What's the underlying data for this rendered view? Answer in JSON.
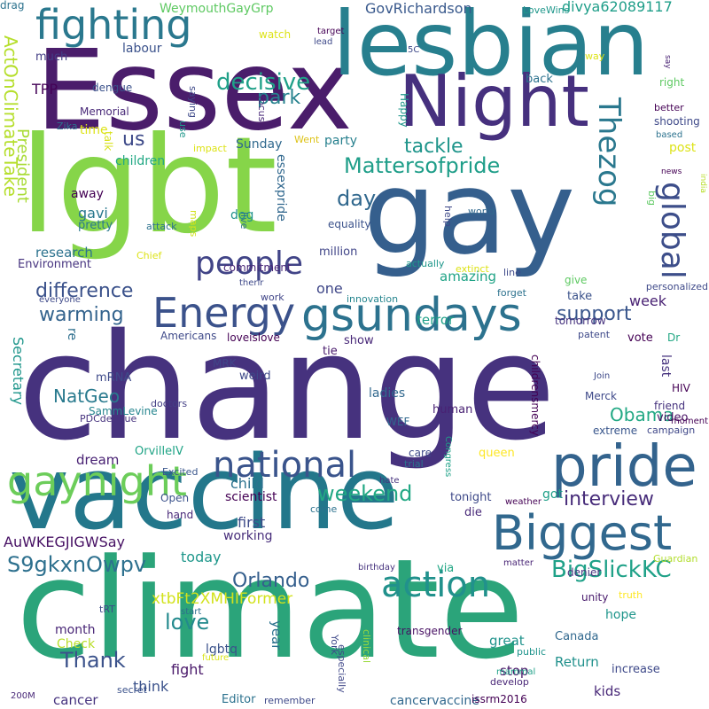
{
  "palette": [
    "#440154",
    "#46327e",
    "#365c8d",
    "#277f8e",
    "#1fa187",
    "#4ac16d",
    "#a0da39",
    "#fde725"
  ],
  "words": [
    {
      "text": "change",
      "color": "#46327e"
    },
    {
      "text": "climate",
      "color": "#2ba47a"
    },
    {
      "text": "vaccine",
      "color": "#23778b"
    },
    {
      "text": "Essex",
      "color": "#4a1d6b"
    },
    {
      "text": "lgbt",
      "color": "#86d549"
    },
    {
      "text": "gay",
      "color": "#355f8d"
    },
    {
      "text": "lesbian",
      "color": "#277f8e"
    },
    {
      "text": "Night",
      "color": "#46307e"
    },
    {
      "text": "pride",
      "color": "#33638d"
    },
    {
      "text": "Biggest",
      "color": "#31688e"
    },
    {
      "text": "gsundays",
      "color": "#2c728e"
    },
    {
      "text": "gaynight",
      "color": "#6ccd5a"
    },
    {
      "text": "Energy",
      "color": "#3b528b"
    },
    {
      "text": "national",
      "color": "#3a548c"
    },
    {
      "text": "action",
      "color": "#21918c"
    },
    {
      "text": "fighting",
      "color": "#2a788e"
    },
    {
      "text": "global",
      "color": "#3d4e8a"
    },
    {
      "text": "people",
      "color": "#414487"
    },
    {
      "text": "Thezog",
      "color": "#2a788e"
    },
    {
      "text": "Mattersofpride",
      "color": "#1f9e89"
    },
    {
      "text": "decisive",
      "color": "#1fa088"
    },
    {
      "text": "weekend",
      "color": "#22a884"
    },
    {
      "text": "tackle",
      "color": "#1f958b"
    },
    {
      "text": "BigSlickKC",
      "color": "#1fa188"
    },
    {
      "text": "S9gkxnOwpv",
      "color": "#2d708e"
    },
    {
      "text": "Orlando",
      "color": "#355f8d"
    },
    {
      "text": "interview",
      "color": "#472c7a"
    },
    {
      "text": "difference",
      "color": "#3b528b"
    },
    {
      "text": "warming",
      "color": "#33638d"
    },
    {
      "text": "support",
      "color": "#39568c"
    },
    {
      "text": "Thank",
      "color": "#3b528b"
    },
    {
      "text": "love",
      "color": "#238a8d"
    },
    {
      "text": "Obama",
      "color": "#22a884"
    },
    {
      "text": "park",
      "color": "#26828e"
    },
    {
      "text": "NatGeo",
      "color": "#297a8e"
    },
    {
      "text": "ActOnClimateTake",
      "color": "#b5de2b"
    },
    {
      "text": "President",
      "color": "#a8db34"
    },
    {
      "text": "day",
      "color": "#31688e"
    },
    {
      "text": "us",
      "color": "#3e4a89"
    },
    {
      "text": "GovRichardson",
      "color": "#38588c"
    },
    {
      "text": "divya62089117",
      "color": "#1f9e89"
    },
    {
      "text": "WeymouthGayGrp",
      "color": "#5ec962"
    },
    {
      "text": "xtbFt2XMHIFormer",
      "color": "#d2e21b"
    },
    {
      "text": "AuWKEGJIGWSay",
      "color": "#471164"
    },
    {
      "text": "research",
      "color": "#2c728e"
    },
    {
      "text": "Environment",
      "color": "#46337f"
    },
    {
      "text": "labour",
      "color": "#3b528b"
    },
    {
      "text": "much",
      "color": "#433e85"
    },
    {
      "text": "TPP",
      "color": "#440256"
    },
    {
      "text": "dengue",
      "color": "#3b528b"
    },
    {
      "text": "Memorial",
      "color": "#482878"
    },
    {
      "text": "Zika",
      "color": "#2c728e"
    },
    {
      "text": "time",
      "color": "#dde318"
    },
    {
      "text": "children",
      "color": "#22a884"
    },
    {
      "text": "gavi",
      "color": "#2a788e"
    },
    {
      "text": "pretty",
      "color": "#2a788e"
    },
    {
      "text": "away",
      "color": "#440154"
    },
    {
      "text": "talk",
      "color": "#d8e219"
    },
    {
      "text": "essexpride",
      "color": "#31688e"
    },
    {
      "text": "Sunday",
      "color": "#30698e"
    },
    {
      "text": "dog",
      "color": "#20928c"
    },
    {
      "text": "party",
      "color": "#27808e"
    },
    {
      "text": "one",
      "color": "#3f4788"
    },
    {
      "text": "million",
      "color": "#404588"
    },
    {
      "text": "equality",
      "color": "#3b528b"
    },
    {
      "text": "commitment",
      "color": "#482677"
    },
    {
      "text": "amazing",
      "color": "#20a386"
    },
    {
      "text": "terror",
      "color": "#1fa188"
    },
    {
      "text": "show",
      "color": "#482878"
    },
    {
      "text": "tie",
      "color": "#481a6c"
    },
    {
      "text": "loveislove",
      "color": "#440154"
    },
    {
      "text": "Americans",
      "color": "#3e4989"
    },
    {
      "text": "mRNA",
      "color": "#3e4a89"
    },
    {
      "text": "re",
      "color": "#2e6f8e"
    },
    {
      "text": "weird",
      "color": "#3e4989"
    },
    {
      "text": "MRK",
      "color": "#404688"
    },
    {
      "text": "Secretary",
      "color": "#1f968b"
    },
    {
      "text": "SammLevine",
      "color": "#25858e"
    },
    {
      "text": "PDCdengue",
      "color": "#46327e"
    },
    {
      "text": "doctors",
      "color": "#433e85"
    },
    {
      "text": "dream",
      "color": "#482173"
    },
    {
      "text": "child",
      "color": "#2c728e"
    },
    {
      "text": "scientist",
      "color": "#440154"
    },
    {
      "text": "working",
      "color": "#472d7b"
    },
    {
      "text": "first",
      "color": "#3e4a89"
    },
    {
      "text": "OrvilleIV",
      "color": "#20a486"
    },
    {
      "text": "Excited",
      "color": "#39568c"
    },
    {
      "text": "Open",
      "color": "#3b528b"
    },
    {
      "text": "hand",
      "color": "#482878"
    },
    {
      "text": "today",
      "color": "#1f978b"
    },
    {
      "text": "month",
      "color": "#482576"
    },
    {
      "text": "Check",
      "color": "#b8de29"
    },
    {
      "text": "fight",
      "color": "#481769"
    },
    {
      "text": "year",
      "color": "#2c728e"
    },
    {
      "text": "lgbtq",
      "color": "#3b528b"
    },
    {
      "text": "think",
      "color": "#3b528b"
    },
    {
      "text": "cancer",
      "color": "#46337f"
    },
    {
      "text": "Editor",
      "color": "#2c728e"
    },
    {
      "text": "remember",
      "color": "#3e4989"
    },
    {
      "text": "York",
      "color": "#3e4989"
    },
    {
      "text": "especially",
      "color": "#3f4788"
    },
    {
      "text": "clinical",
      "color": "#9bd93c"
    },
    {
      "text": "cancervaccine",
      "color": "#31688e"
    },
    {
      "text": "issrm2016",
      "color": "#440154"
    },
    {
      "text": "transgender",
      "color": "#471063"
    },
    {
      "text": "great",
      "color": "#20938c"
    },
    {
      "text": "stop",
      "color": "#481668"
    },
    {
      "text": "public",
      "color": "#1f948c"
    },
    {
      "text": "Return",
      "color": "#21918c"
    },
    {
      "text": "kids",
      "color": "#482878"
    },
    {
      "text": "increase",
      "color": "#3e4989"
    },
    {
      "text": "develop",
      "color": "#482576"
    },
    {
      "text": "mammal",
      "color": "#1fa188"
    },
    {
      "text": "secret",
      "color": "#3b528b"
    },
    {
      "text": "future",
      "color": "#dae319"
    },
    {
      "text": "start",
      "color": "#2e6e8e"
    },
    {
      "text": "tRT",
      "color": "#3e4989"
    },
    {
      "text": "200M",
      "color": "#482878"
    },
    {
      "text": "Canada",
      "color": "#31688e"
    },
    {
      "text": "hope",
      "color": "#1f958b"
    },
    {
      "text": "unity",
      "color": "#481a6c"
    },
    {
      "text": "truth",
      "color": "#fde725"
    },
    {
      "text": "Guardian",
      "color": "#b2dd2d"
    },
    {
      "text": "denier",
      "color": "#46327e"
    },
    {
      "text": "matter",
      "color": "#482475"
    },
    {
      "text": "birthday",
      "color": "#46327e"
    },
    {
      "text": "via",
      "color": "#22a785"
    },
    {
      "text": "die",
      "color": "#482979"
    },
    {
      "text": "tonight",
      "color": "#3e4989"
    },
    {
      "text": "got",
      "color": "#1f9f88"
    },
    {
      "text": "weather",
      "color": "#440154"
    },
    {
      "text": "come",
      "color": "#2c728e"
    },
    {
      "text": "queen",
      "color": "#fde725"
    },
    {
      "text": "trial",
      "color": "#2c728e"
    },
    {
      "text": "Congress",
      "color": "#1fa188"
    },
    {
      "text": "hate",
      "color": "#46327e"
    },
    {
      "text": "care",
      "color": "#3e4989"
    },
    {
      "text": "human",
      "color": "#482173"
    },
    {
      "text": "WEF",
      "color": "#31688e"
    },
    {
      "text": "ladies",
      "color": "#31688e"
    },
    {
      "text": "childrensmercy",
      "color": "#440154"
    },
    {
      "text": "Merck",
      "color": "#3e4989"
    },
    {
      "text": "extreme",
      "color": "#39568c"
    },
    {
      "text": "campaign",
      "color": "#3f4788"
    },
    {
      "text": "video",
      "color": "#471164"
    },
    {
      "text": "moment",
      "color": "#440154"
    },
    {
      "text": "friend",
      "color": "#46327e"
    },
    {
      "text": "HIV",
      "color": "#440154"
    },
    {
      "text": "Join",
      "color": "#3e4989"
    },
    {
      "text": "last",
      "color": "#46327e"
    },
    {
      "text": "vote",
      "color": "#440154"
    },
    {
      "text": "patent",
      "color": "#3e4989"
    },
    {
      "text": "Dr",
      "color": "#22a884"
    },
    {
      "text": "week",
      "color": "#482173"
    },
    {
      "text": "take",
      "color": "#3b528b"
    },
    {
      "text": "give",
      "color": "#5ec962"
    },
    {
      "text": "forget",
      "color": "#2c728e"
    },
    {
      "text": "line",
      "color": "#3e4989"
    },
    {
      "text": "innovation",
      "color": "#25858e"
    },
    {
      "text": "everyone",
      "color": "#3e4989"
    },
    {
      "text": "work",
      "color": "#404588"
    },
    {
      "text": "therir",
      "color": "#3e4989"
    },
    {
      "text": "extinct",
      "color": "#dde318"
    },
    {
      "text": "actually",
      "color": "#1f978b"
    },
    {
      "text": "world",
      "color": "#31688e"
    },
    {
      "text": "help",
      "color": "#3e4989"
    },
    {
      "text": "live",
      "color": "#2c728e"
    },
    {
      "text": "Chief",
      "color": "#dde318"
    },
    {
      "text": "maps",
      "color": "#d2e21b"
    },
    {
      "text": "attack",
      "color": "#2c728e"
    },
    {
      "text": "impact",
      "color": "#dde318"
    },
    {
      "text": "use",
      "color": "#1f978b"
    },
    {
      "text": "Went",
      "color": "#ddc318"
    },
    {
      "text": "focus",
      "color": "#482878"
    },
    {
      "text": "saying",
      "color": "#3e4989"
    },
    {
      "text": "Happy",
      "color": "#1f978b"
    },
    {
      "text": "back",
      "color": "#2c728e"
    },
    {
      "text": "post",
      "color": "#dde318"
    },
    {
      "text": "right",
      "color": "#5ec962"
    },
    {
      "text": "better",
      "color": "#440154"
    },
    {
      "text": "shooting",
      "color": "#3e4989"
    },
    {
      "text": "based",
      "color": "#2c728e"
    },
    {
      "text": "news",
      "color": "#440154"
    },
    {
      "text": "india",
      "color": "#b8de29"
    },
    {
      "text": "big",
      "color": "#5ec962"
    },
    {
      "text": "personalized",
      "color": "#3e4989"
    },
    {
      "text": "tomorrow",
      "color": "#46327e"
    },
    {
      "text": "say",
      "color": "#482173"
    },
    {
      "text": "way",
      "color": "#dde318"
    },
    {
      "text": "5C",
      "color": "#3e4989"
    },
    {
      "text": "LoveWins",
      "color": "#1f978b"
    },
    {
      "text": "target",
      "color": "#440154"
    },
    {
      "text": "lead",
      "color": "#3e4989"
    },
    {
      "text": "watch",
      "color": "#dde318"
    },
    {
      "text": "drag",
      "color": "#2c728e"
    }
  ]
}
